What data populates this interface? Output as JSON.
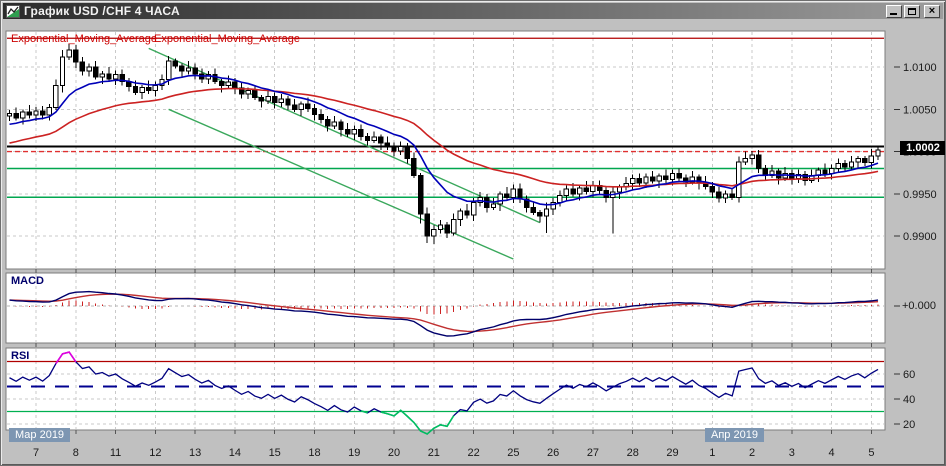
{
  "window": {
    "title": "График USD /CHF  4 ЧАСА",
    "controls": [
      {
        "name": "minimize-button"
      },
      {
        "name": "maximize-button"
      },
      {
        "name": "close-button"
      }
    ]
  },
  "chart_data": {
    "type": "candlestick",
    "symbol": "USD/CHF",
    "timeframe": "4 ЧАСА",
    "price_axis": {
      "labels": [
        "1.0100",
        "1.0050",
        "1.0000",
        "0.9950",
        "0.9900"
      ],
      "values": [
        1.01,
        1.005,
        1.0,
        0.995,
        0.99
      ],
      "current_price_label": "1.0002",
      "current_price": 1.0002
    },
    "date_axis": {
      "months": [
        {
          "label": "Мар 2019",
          "index": 0
        },
        {
          "label": "Апр 2019",
          "index": 106
        }
      ],
      "ticks": [
        {
          "label": "7",
          "index": 4
        },
        {
          "label": "8",
          "index": 10
        },
        {
          "label": "11",
          "index": 16
        },
        {
          "label": "12",
          "index": 22
        },
        {
          "label": "13",
          "index": 28
        },
        {
          "label": "14",
          "index": 34
        },
        {
          "label": "15",
          "index": 40
        },
        {
          "label": "18",
          "index": 46
        },
        {
          "label": "19",
          "index": 52
        },
        {
          "label": "20",
          "index": 58
        },
        {
          "label": "21",
          "index": 64
        },
        {
          "label": "22",
          "index": 70
        },
        {
          "label": "25",
          "index": 76
        },
        {
          "label": "26",
          "index": 82
        },
        {
          "label": "27",
          "index": 88
        },
        {
          "label": "28",
          "index": 94
        },
        {
          "label": "29",
          "index": 100
        },
        {
          "label": "1",
          "index": 106
        },
        {
          "label": "2",
          "index": 112
        },
        {
          "label": "3",
          "index": 118
        },
        {
          "label": "4",
          "index": 124
        },
        {
          "label": "5",
          "index": 130
        }
      ]
    },
    "candles": [
      [
        1.0042,
        1.0049,
        1.0036,
        1.0045
      ],
      [
        1.0045,
        1.0052,
        1.0037,
        1.004
      ],
      [
        1.004,
        1.005,
        1.0032,
        1.0047
      ],
      [
        1.0047,
        1.0055,
        1.0039,
        1.0043
      ],
      [
        1.0043,
        1.0053,
        1.0036,
        1.0048
      ],
      [
        1.0048,
        1.0054,
        1.0038,
        1.0043
      ],
      [
        1.0043,
        1.0056,
        1.0037,
        1.0052
      ],
      [
        1.0052,
        1.0085,
        1.0049,
        1.0078
      ],
      [
        1.0078,
        1.012,
        1.007,
        1.0112
      ],
      [
        1.0112,
        1.0128,
        1.0108,
        1.012
      ],
      [
        1.012,
        1.0126,
        1.0099,
        1.0106
      ],
      [
        1.0106,
        1.0112,
        1.009,
        1.0095
      ],
      [
        1.0095,
        1.0104,
        1.0089,
        1.01
      ],
      [
        1.01,
        1.0107,
        1.0085,
        1.0088
      ],
      [
        1.0088,
        1.0095,
        1.008,
        1.0092
      ],
      [
        1.0092,
        1.01,
        1.0082,
        1.0086
      ],
      [
        1.0086,
        1.0096,
        1.0079,
        1.0091
      ],
      [
        1.0091,
        1.0097,
        1.0078,
        1.0083
      ],
      [
        1.0083,
        1.0087,
        1.0071,
        1.0077
      ],
      [
        1.0077,
        1.0084,
        1.0067,
        1.007
      ],
      [
        1.007,
        1.0079,
        1.0062,
        1.0076
      ],
      [
        1.0076,
        1.0084,
        1.0068,
        1.0072
      ],
      [
        1.0072,
        1.0083,
        1.0065,
        1.0078
      ],
      [
        1.0078,
        1.0091,
        1.0073,
        1.0085
      ],
      [
        1.0085,
        1.0113,
        1.0079,
        1.0107
      ],
      [
        1.0107,
        1.011,
        1.0098,
        1.0101
      ],
      [
        1.0101,
        1.0104,
        1.0087,
        1.0095
      ],
      [
        1.0095,
        1.0107,
        1.0091,
        1.0099
      ],
      [
        1.0099,
        1.0104,
        1.0085,
        1.0092
      ],
      [
        1.0092,
        1.0098,
        1.0081,
        1.0086
      ],
      [
        1.0086,
        1.0095,
        1.008,
        1.0091
      ],
      [
        1.0091,
        1.0098,
        1.008,
        1.0083
      ],
      [
        1.0083,
        1.0086,
        1.007,
        1.0078
      ],
      [
        1.0078,
        1.009,
        1.0074,
        1.0082
      ],
      [
        1.0082,
        1.0087,
        1.0068,
        1.0075
      ],
      [
        1.0075,
        1.0081,
        1.0063,
        1.0068
      ],
      [
        1.0068,
        1.0076,
        1.0062,
        1.0072
      ],
      [
        1.0072,
        1.0079,
        1.0061,
        1.0064
      ],
      [
        1.0064,
        1.0067,
        1.0052,
        1.006
      ],
      [
        1.006,
        1.0073,
        1.0056,
        1.0065
      ],
      [
        1.0065,
        1.007,
        1.0051,
        1.0058
      ],
      [
        1.0058,
        1.0068,
        1.0053,
        1.0062
      ],
      [
        1.0062,
        1.0066,
        1.0049,
        1.0055
      ],
      [
        1.0055,
        1.0062,
        1.0047,
        1.005
      ],
      [
        1.005,
        1.0059,
        1.0042,
        1.0056
      ],
      [
        1.0056,
        1.0064,
        1.0047,
        1.0051
      ],
      [
        1.0051,
        1.0056,
        1.0037,
        1.0044
      ],
      [
        1.0044,
        1.005,
        1.0033,
        1.0038
      ],
      [
        1.0038,
        1.0042,
        1.0024,
        1.003
      ],
      [
        1.003,
        1.0042,
        1.0027,
        1.0035
      ],
      [
        1.0035,
        1.0038,
        1.0018,
        1.0026
      ],
      [
        1.0026,
        1.0034,
        1.0017,
        1.0021
      ],
      [
        1.0021,
        1.0031,
        1.0014,
        1.0026
      ],
      [
        1.0026,
        1.0032,
        1.0013,
        1.0018
      ],
      [
        1.0018,
        1.0022,
        1.0007,
        1.0013
      ],
      [
        1.0013,
        1.0024,
        1.001,
        1.0017
      ],
      [
        1.0017,
        1.002,
        1.0002,
        1.001
      ],
      [
        1.001,
        1.0018,
        1.0002,
        1.0006
      ],
      [
        1.0006,
        1.0011,
        0.9994,
        1.0001
      ],
      [
        1.0001,
        1.0012,
        0.9996,
        1.0006
      ],
      [
        1.0006,
        1.001,
        0.9986,
        0.9992
      ],
      [
        0.9992,
        0.9999,
        0.9969,
        0.9972
      ],
      [
        0.9972,
        0.9975,
        0.9915,
        0.9926
      ],
      [
        0.9926,
        0.9934,
        0.9892,
        0.99
      ],
      [
        0.99,
        0.9913,
        0.9891,
        0.9908
      ],
      [
        0.9908,
        0.9919,
        0.9903,
        0.9913
      ],
      [
        0.9913,
        0.9917,
        0.9898,
        0.9904
      ],
      [
        0.9904,
        0.9927,
        0.9901,
        0.992
      ],
      [
        0.992,
        0.9933,
        0.9912,
        0.993
      ],
      [
        0.993,
        0.9938,
        0.9921,
        0.9925
      ],
      [
        0.9925,
        0.9945,
        0.9918,
        0.994
      ],
      [
        0.994,
        0.9952,
        0.9935,
        0.9946
      ],
      [
        0.9946,
        0.995,
        0.9928,
        0.9934
      ],
      [
        0.9934,
        0.9945,
        0.9931,
        0.9938
      ],
      [
        0.9938,
        0.9953,
        0.993,
        0.995
      ],
      [
        0.995,
        0.9958,
        0.9942,
        0.9946
      ],
      [
        0.9946,
        0.9961,
        0.9939,
        0.9956
      ],
      [
        0.9956,
        0.9962,
        0.9939,
        0.9944
      ],
      [
        0.9944,
        0.9948,
        0.9928,
        0.9934
      ],
      [
        0.9934,
        0.9941,
        0.9925,
        0.9928
      ],
      [
        0.9928,
        0.9931,
        0.9916,
        0.9924
      ],
      [
        0.9924,
        0.994,
        0.9904,
        0.9932
      ],
      [
        0.9932,
        0.9945,
        0.9925,
        0.994
      ],
      [
        0.994,
        0.9954,
        0.9935,
        0.9948
      ],
      [
        0.9948,
        0.996,
        0.9942,
        0.9956
      ],
      [
        0.9956,
        0.9963,
        0.9947,
        0.995
      ],
      [
        0.995,
        0.996,
        0.9942,
        0.9957
      ],
      [
        0.9957,
        0.9965,
        0.9949,
        0.9953
      ],
      [
        0.9953,
        0.9965,
        0.9946,
        0.996
      ],
      [
        0.996,
        0.9966,
        0.9949,
        0.9954
      ],
      [
        0.9954,
        0.9958,
        0.994,
        0.9946
      ],
      [
        0.9946,
        0.9959,
        0.9903,
        0.9952
      ],
      [
        0.9952,
        0.9961,
        0.9944,
        0.9958
      ],
      [
        0.9958,
        0.997,
        0.9954,
        0.9962
      ],
      [
        0.9962,
        0.9973,
        0.9955,
        0.9968
      ],
      [
        0.9968,
        0.9974,
        0.9958,
        0.9963
      ],
      [
        0.9963,
        0.9974,
        0.9957,
        0.997
      ],
      [
        0.997,
        0.9977,
        0.9962,
        0.9965
      ],
      [
        0.9965,
        0.9974,
        0.9957,
        0.9971
      ],
      [
        0.9971,
        0.9979,
        0.9963,
        0.9967
      ],
      [
        0.9967,
        0.9979,
        0.996,
        0.9974
      ],
      [
        0.9974,
        0.998,
        0.9964,
        0.9969
      ],
      [
        0.9969,
        0.9973,
        0.9958,
        0.9964
      ],
      [
        0.9964,
        0.9977,
        0.9961,
        0.997
      ],
      [
        0.997,
        0.9973,
        0.9955,
        0.9963
      ],
      [
        0.9963,
        0.9971,
        0.9955,
        0.9959
      ],
      [
        0.9959,
        0.9964,
        0.9945,
        0.9952
      ],
      [
        0.9952,
        0.9958,
        0.994,
        0.9945
      ],
      [
        0.9945,
        0.9954,
        0.9939,
        0.995
      ],
      [
        0.995,
        0.9957,
        0.9943,
        0.9946
      ],
      [
        0.9946,
        0.9994,
        0.994,
        0.9988
      ],
      [
        0.9988,
        1.0,
        0.9984,
        0.9992
      ],
      [
        0.9992,
        1.0001,
        0.9985,
        0.9996
      ],
      [
        0.9996,
        1.0002,
        0.9975,
        0.998
      ],
      [
        0.998,
        0.9984,
        0.9966,
        0.9972
      ],
      [
        0.9972,
        0.9984,
        0.9969,
        0.9977
      ],
      [
        0.9977,
        0.998,
        0.9961,
        0.9969
      ],
      [
        0.9969,
        0.9982,
        0.9965,
        0.9974
      ],
      [
        0.9974,
        0.9979,
        0.9961,
        0.9968
      ],
      [
        0.9968,
        0.9979,
        0.9963,
        0.9973
      ],
      [
        0.9973,
        0.9977,
        0.996,
        0.9966
      ],
      [
        0.9966,
        0.9979,
        0.9963,
        0.9972
      ],
      [
        0.9972,
        0.9981,
        0.9964,
        0.9978
      ],
      [
        0.9978,
        0.9986,
        0.997,
        0.9974
      ],
      [
        0.9974,
        0.9985,
        0.9967,
        0.998
      ],
      [
        0.998,
        0.9992,
        0.9975,
        0.9986
      ],
      [
        0.9986,
        0.999,
        0.9976,
        0.9982
      ],
      [
        0.9982,
        0.9995,
        0.9979,
        0.9988
      ],
      [
        0.9988,
        0.9995,
        0.998,
        0.9992
      ],
      [
        0.9992,
        0.9995,
        0.9983,
        0.9987
      ],
      [
        0.9987,
        1.0003,
        0.998,
        0.9995
      ],
      [
        0.9995,
        1.0005,
        0.999,
        1.0002
      ]
    ],
    "overlays": {
      "indicator_labels": [
        "Exponential_Moving_Average",
        "Exponential_Moving_Average"
      ],
      "ema_fast": {
        "period": 12,
        "seed": 1.003,
        "color": "#0000b8"
      },
      "ema_slow": {
        "period": 34,
        "seed": 1.0008,
        "color": "#cc2222"
      },
      "hlines": [
        {
          "price": 1.0134,
          "color": "#b00000",
          "width": 1.2,
          "dash": ""
        },
        {
          "price": 1.0006,
          "color": "#000000",
          "width": 2,
          "dash": ""
        },
        {
          "price": 1.0,
          "color": "#e03030",
          "width": 1.4,
          "dash": "5,3"
        },
        {
          "price": 0.998,
          "color": "#00a64f",
          "width": 1.5,
          "dash": ""
        },
        {
          "price": 0.9946,
          "color": "#00a64f",
          "width": 1.5,
          "dash": ""
        }
      ],
      "trendlines": [
        {
          "i1": 21,
          "p1": 1.0122,
          "i2": 80,
          "p2": 0.9916,
          "color": "#3aa85c",
          "width": 1.4
        },
        {
          "i1": 24,
          "p1": 1.005,
          "i2": 76,
          "p2": 0.9873,
          "color": "#3aa85c",
          "width": 1.4
        }
      ]
    },
    "macd": {
      "label": "MACD",
      "fast": 12,
      "slow": 26,
      "signal": 9,
      "axis_label": "+0.000",
      "line_color": "#00006b",
      "signal_color": "#c03030",
      "hist_color": "#cc2222"
    },
    "rsi": {
      "label": "RSI",
      "period": 14,
      "ticks": [
        60,
        40,
        20
      ],
      "levels": [
        {
          "value": 70,
          "color": "#b00000",
          "style": "solid"
        },
        {
          "value": 50,
          "color": "#000090",
          "style": "dash"
        },
        {
          "value": 30,
          "color": "#00b050",
          "style": "solid"
        }
      ],
      "line_color": "#000080",
      "over_color": "#e000e0",
      "under_color": "#00c060"
    }
  }
}
